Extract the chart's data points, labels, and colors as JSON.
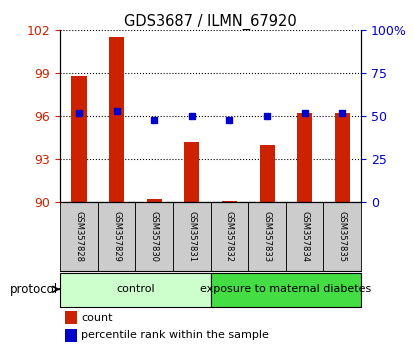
{
  "title": "GDS3687 / ILMN_67920",
  "samples": [
    "GSM357828",
    "GSM357829",
    "GSM357830",
    "GSM357831",
    "GSM357832",
    "GSM357833",
    "GSM357834",
    "GSM357835"
  ],
  "counts": [
    98.8,
    101.5,
    90.2,
    94.2,
    90.1,
    94.0,
    96.2,
    96.2
  ],
  "percentiles": [
    52,
    53,
    48,
    50,
    48,
    50,
    52,
    52
  ],
  "ylim_left": [
    90,
    102
  ],
  "yticks_left": [
    90,
    93,
    96,
    99,
    102
  ],
  "ylim_right": [
    0,
    100
  ],
  "yticks_right": [
    0,
    25,
    50,
    75,
    100
  ],
  "bar_color": "#cc2200",
  "dot_color": "#0000cc",
  "groups": [
    {
      "label": "control",
      "start": 0,
      "end": 4,
      "color": "#ccffcc"
    },
    {
      "label": "exposure to maternal diabetes",
      "start": 4,
      "end": 8,
      "color": "#44dd44"
    }
  ],
  "protocol_label": "protocol",
  "legend_count_label": "count",
  "legend_pct_label": "percentile rank within the sample",
  "tick_label_color_left": "#cc2200",
  "tick_label_color_right": "#0000cc",
  "sample_box_color": "#cccccc",
  "bar_width": 0.4
}
